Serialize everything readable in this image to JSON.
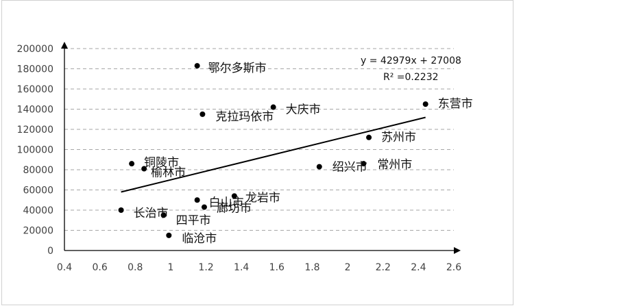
{
  "chart_data": {
    "type": "scatter",
    "xlim": [
      0.4,
      2.6
    ],
    "ylim": [
      0,
      200000
    ],
    "x_ticks": [
      "0.4",
      "0.6",
      "0.8",
      "1",
      "1.2",
      "1.4",
      "1.6",
      "1.8",
      "2",
      "2.2",
      "2.4",
      "2.6"
    ],
    "y_ticks": [
      "0",
      "20000",
      "40000",
      "60000",
      "80000",
      "100000",
      "120000",
      "140000",
      "160000",
      "180000",
      "200000"
    ],
    "grid": "horizontal-dashed",
    "points": [
      {
        "label": "鄂尔多斯市",
        "x": 1.15,
        "y": 183000
      },
      {
        "label": "克拉玛依市",
        "x": 1.18,
        "y": 135000
      },
      {
        "label": "大庆市",
        "x": 1.58,
        "y": 142000
      },
      {
        "label": "东营市",
        "x": 2.44,
        "y": 145000
      },
      {
        "label": "苏州市",
        "x": 2.12,
        "y": 112000
      },
      {
        "label": "常州市",
        "x": 2.09,
        "y": 86000
      },
      {
        "label": "绍兴市",
        "x": 1.84,
        "y": 83000
      },
      {
        "label": "铜陵市",
        "x": 0.78,
        "y": 86000
      },
      {
        "label": "榆林市",
        "x": 0.85,
        "y": 81000
      },
      {
        "label": "白山市",
        "x": 1.15,
        "y": 50000
      },
      {
        "label": "龙岩市",
        "x": 1.36,
        "y": 54000
      },
      {
        "label": "廊坊市",
        "x": 1.19,
        "y": 43000
      },
      {
        "label": "长治市",
        "x": 0.72,
        "y": 40000
      },
      {
        "label": "四平市",
        "x": 0.96,
        "y": 35000
      },
      {
        "label": "临沧市",
        "x": 0.99,
        "y": 15000
      }
    ],
    "trendline": {
      "slope": 42979,
      "intercept": 27008,
      "x_from": 0.72,
      "x_to": 2.44
    },
    "equation_text": "y = 42979x  + 27008",
    "r2_text": "R² =0.2232"
  }
}
